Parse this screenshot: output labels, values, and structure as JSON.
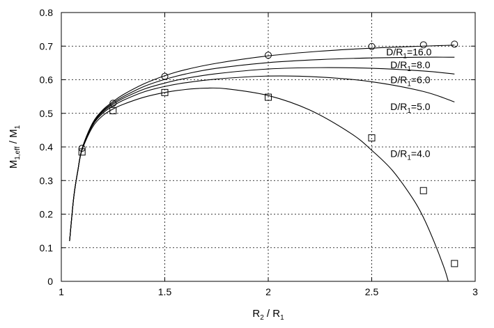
{
  "chart_data": {
    "type": "line",
    "title": "",
    "xlabel": {
      "main": "R",
      "sub": "2",
      "rest": " / R",
      "sub2": "1"
    },
    "ylabel": {
      "main": "M",
      "sub": "1,eff",
      "rest": " / M",
      "sub2": "1"
    },
    "xlim": [
      1,
      3
    ],
    "ylim": [
      0,
      0.8
    ],
    "x_ticks": [
      "1",
      "1.5",
      "2",
      "2.5",
      "3"
    ],
    "y_ticks": [
      "0",
      "0.1",
      "0.2",
      "0.3",
      "0.4",
      "0.5",
      "0.6",
      "0.7",
      "0.8"
    ],
    "grid": true,
    "series": [
      {
        "name": "D/R1=16.0",
        "label_parts": {
          "pre": "D/R",
          "sub": "1",
          "post": "=16.0"
        },
        "x": [
          1.04,
          1.06,
          1.08,
          1.1,
          1.15,
          1.2,
          1.25,
          1.3,
          1.4,
          1.5,
          1.6,
          1.75,
          2.0,
          2.25,
          2.5,
          2.75,
          2.9
        ],
        "y": [
          0.12,
          0.25,
          0.33,
          0.395,
          0.47,
          0.51,
          0.535,
          0.556,
          0.588,
          0.612,
          0.63,
          0.649,
          0.671,
          0.685,
          0.694,
          0.7,
          0.703
        ]
      },
      {
        "name": "D/R1=8.0",
        "label_parts": {
          "pre": "D/R",
          "sub": "1",
          "post": "=8.0"
        },
        "x": [
          1.04,
          1.06,
          1.08,
          1.1,
          1.15,
          1.2,
          1.25,
          1.3,
          1.4,
          1.5,
          1.6,
          1.75,
          2.0,
          2.25,
          2.5,
          2.75,
          2.9
        ],
        "y": [
          0.12,
          0.25,
          0.33,
          0.394,
          0.468,
          0.507,
          0.531,
          0.55,
          0.58,
          0.601,
          0.617,
          0.634,
          0.651,
          0.66,
          0.665,
          0.667,
          0.667
        ]
      },
      {
        "name": "D/R1=6.0",
        "label_parts": {
          "pre": "D/R",
          "sub": "1",
          "post": "=6.0"
        },
        "x": [
          1.04,
          1.06,
          1.08,
          1.1,
          1.15,
          1.2,
          1.25,
          1.3,
          1.4,
          1.5,
          1.6,
          1.75,
          2.0,
          2.25,
          2.5,
          2.75,
          2.9
        ],
        "y": [
          0.12,
          0.25,
          0.33,
          0.393,
          0.466,
          0.504,
          0.527,
          0.545,
          0.572,
          0.59,
          0.604,
          0.618,
          0.632,
          0.636,
          0.634,
          0.626,
          0.617
        ]
      },
      {
        "name": "D/R1=5.0",
        "label_parts": {
          "pre": "D/R",
          "sub": "1",
          "post": "=5.0"
        },
        "x": [
          1.04,
          1.06,
          1.08,
          1.1,
          1.15,
          1.2,
          1.25,
          1.3,
          1.4,
          1.5,
          1.6,
          1.75,
          2.0,
          2.25,
          2.5,
          2.75,
          2.9
        ],
        "y": [
          0.12,
          0.25,
          0.33,
          0.392,
          0.463,
          0.5,
          0.522,
          0.539,
          0.564,
          0.58,
          0.591,
          0.602,
          0.611,
          0.608,
          0.594,
          0.565,
          0.534
        ]
      },
      {
        "name": "D/R1=4.0",
        "label_parts": {
          "pre": "D/R",
          "sub": "1",
          "post": "=4.0"
        },
        "x": [
          1.04,
          1.06,
          1.08,
          1.1,
          1.15,
          1.2,
          1.25,
          1.3,
          1.4,
          1.5,
          1.6,
          1.7,
          1.8,
          2.0,
          2.2,
          2.4,
          2.5,
          2.6,
          2.7,
          2.75,
          2.8,
          2.85,
          2.87
        ],
        "y": [
          0.12,
          0.25,
          0.33,
          0.39,
          0.458,
          0.493,
          0.513,
          0.527,
          0.548,
          0.562,
          0.571,
          0.575,
          0.573,
          0.553,
          0.51,
          0.44,
          0.39,
          0.33,
          0.245,
          0.19,
          0.12,
          0.04,
          0.0
        ]
      }
    ],
    "markers": [
      {
        "shape": "circle",
        "x": [
          1.1,
          1.25,
          1.5,
          2.0,
          2.5,
          2.75,
          2.9
        ],
        "y": [
          0.396,
          0.53,
          0.61,
          0.673,
          0.699,
          0.704,
          0.706
        ]
      },
      {
        "shape": "square",
        "x": [
          1.1,
          1.25,
          1.5,
          2.0,
          2.5,
          2.75,
          2.9
        ],
        "y": [
          0.385,
          0.508,
          0.562,
          0.548,
          0.427,
          0.27,
          0.053
        ]
      }
    ]
  }
}
